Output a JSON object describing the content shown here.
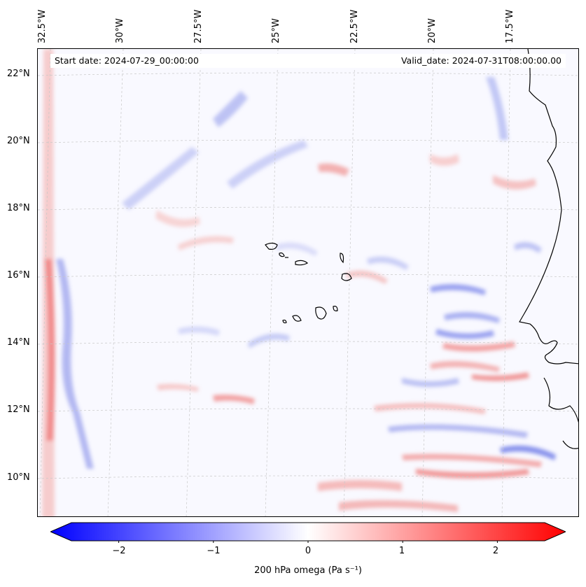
{
  "header": {
    "start_date": "Start date: 2024-07-29_00:00:00",
    "valid_date": "Valid_date: 2024-07-31T08:00:00.00"
  },
  "map": {
    "longitude_labels": [
      "32.5°W",
      "30°W",
      "27.5°W",
      "25°W",
      "22.5°W",
      "20°W",
      "17.5°W"
    ],
    "latitude_labels": [
      "22°N",
      "20°N",
      "18°N",
      "16°N",
      "14°N",
      "12°N",
      "10°N"
    ],
    "extent": {
      "lon_min": -32.6,
      "lon_max": -15.1,
      "lat_min": 8.9,
      "lat_max": 22.8
    },
    "gridlines": true,
    "coastlines": true,
    "field_colormap": "bwr"
  },
  "colorbar": {
    "tick_labels": [
      "−2",
      "−1",
      "0",
      "1",
      "2"
    ],
    "tick_values": [
      -2,
      -1,
      0,
      1,
      2
    ],
    "range": [
      -2.5,
      2.5
    ],
    "extend": "both",
    "label": "200 hPa omega (Pa s⁻¹)",
    "colors": {
      "min": "#0000ff",
      "mid": "#ffffff",
      "max": "#ff0000"
    }
  }
}
